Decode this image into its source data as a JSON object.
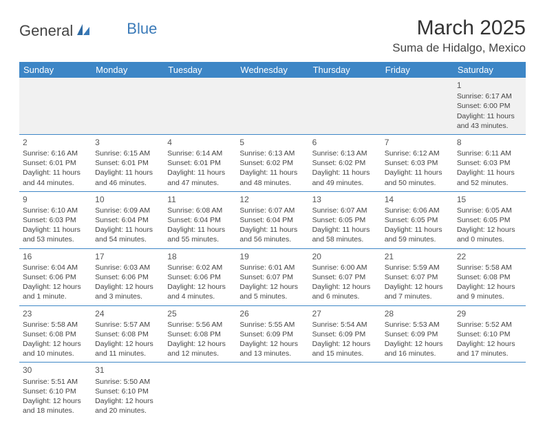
{
  "logo": {
    "part1": "General",
    "part2": "Blue"
  },
  "title": "March 2025",
  "location": "Suma de Hidalgo, Mexico",
  "colors": {
    "header_bg": "#3d86c6",
    "header_text": "#ffffff",
    "row_divider": "#3d86c6",
    "first_row_bg": "#f1f1f1",
    "body_text": "#3c3c3c",
    "logo_blue": "#3a7ab8"
  },
  "day_headers": [
    "Sunday",
    "Monday",
    "Tuesday",
    "Wednesday",
    "Thursday",
    "Friday",
    "Saturday"
  ],
  "weeks": [
    [
      null,
      null,
      null,
      null,
      null,
      null,
      {
        "n": "1",
        "sunrise": "Sunrise: 6:17 AM",
        "sunset": "Sunset: 6:00 PM",
        "daylight": "Daylight: 11 hours and 43 minutes."
      }
    ],
    [
      {
        "n": "2",
        "sunrise": "Sunrise: 6:16 AM",
        "sunset": "Sunset: 6:01 PM",
        "daylight": "Daylight: 11 hours and 44 minutes."
      },
      {
        "n": "3",
        "sunrise": "Sunrise: 6:15 AM",
        "sunset": "Sunset: 6:01 PM",
        "daylight": "Daylight: 11 hours and 46 minutes."
      },
      {
        "n": "4",
        "sunrise": "Sunrise: 6:14 AM",
        "sunset": "Sunset: 6:01 PM",
        "daylight": "Daylight: 11 hours and 47 minutes."
      },
      {
        "n": "5",
        "sunrise": "Sunrise: 6:13 AM",
        "sunset": "Sunset: 6:02 PM",
        "daylight": "Daylight: 11 hours and 48 minutes."
      },
      {
        "n": "6",
        "sunrise": "Sunrise: 6:13 AM",
        "sunset": "Sunset: 6:02 PM",
        "daylight": "Daylight: 11 hours and 49 minutes."
      },
      {
        "n": "7",
        "sunrise": "Sunrise: 6:12 AM",
        "sunset": "Sunset: 6:03 PM",
        "daylight": "Daylight: 11 hours and 50 minutes."
      },
      {
        "n": "8",
        "sunrise": "Sunrise: 6:11 AM",
        "sunset": "Sunset: 6:03 PM",
        "daylight": "Daylight: 11 hours and 52 minutes."
      }
    ],
    [
      {
        "n": "9",
        "sunrise": "Sunrise: 6:10 AM",
        "sunset": "Sunset: 6:03 PM",
        "daylight": "Daylight: 11 hours and 53 minutes."
      },
      {
        "n": "10",
        "sunrise": "Sunrise: 6:09 AM",
        "sunset": "Sunset: 6:04 PM",
        "daylight": "Daylight: 11 hours and 54 minutes."
      },
      {
        "n": "11",
        "sunrise": "Sunrise: 6:08 AM",
        "sunset": "Sunset: 6:04 PM",
        "daylight": "Daylight: 11 hours and 55 minutes."
      },
      {
        "n": "12",
        "sunrise": "Sunrise: 6:07 AM",
        "sunset": "Sunset: 6:04 PM",
        "daylight": "Daylight: 11 hours and 56 minutes."
      },
      {
        "n": "13",
        "sunrise": "Sunrise: 6:07 AM",
        "sunset": "Sunset: 6:05 PM",
        "daylight": "Daylight: 11 hours and 58 minutes."
      },
      {
        "n": "14",
        "sunrise": "Sunrise: 6:06 AM",
        "sunset": "Sunset: 6:05 PM",
        "daylight": "Daylight: 11 hours and 59 minutes."
      },
      {
        "n": "15",
        "sunrise": "Sunrise: 6:05 AM",
        "sunset": "Sunset: 6:05 PM",
        "daylight": "Daylight: 12 hours and 0 minutes."
      }
    ],
    [
      {
        "n": "16",
        "sunrise": "Sunrise: 6:04 AM",
        "sunset": "Sunset: 6:06 PM",
        "daylight": "Daylight: 12 hours and 1 minute."
      },
      {
        "n": "17",
        "sunrise": "Sunrise: 6:03 AM",
        "sunset": "Sunset: 6:06 PM",
        "daylight": "Daylight: 12 hours and 3 minutes."
      },
      {
        "n": "18",
        "sunrise": "Sunrise: 6:02 AM",
        "sunset": "Sunset: 6:06 PM",
        "daylight": "Daylight: 12 hours and 4 minutes."
      },
      {
        "n": "19",
        "sunrise": "Sunrise: 6:01 AM",
        "sunset": "Sunset: 6:07 PM",
        "daylight": "Daylight: 12 hours and 5 minutes."
      },
      {
        "n": "20",
        "sunrise": "Sunrise: 6:00 AM",
        "sunset": "Sunset: 6:07 PM",
        "daylight": "Daylight: 12 hours and 6 minutes."
      },
      {
        "n": "21",
        "sunrise": "Sunrise: 5:59 AM",
        "sunset": "Sunset: 6:07 PM",
        "daylight": "Daylight: 12 hours and 7 minutes."
      },
      {
        "n": "22",
        "sunrise": "Sunrise: 5:58 AM",
        "sunset": "Sunset: 6:08 PM",
        "daylight": "Daylight: 12 hours and 9 minutes."
      }
    ],
    [
      {
        "n": "23",
        "sunrise": "Sunrise: 5:58 AM",
        "sunset": "Sunset: 6:08 PM",
        "daylight": "Daylight: 12 hours and 10 minutes."
      },
      {
        "n": "24",
        "sunrise": "Sunrise: 5:57 AM",
        "sunset": "Sunset: 6:08 PM",
        "daylight": "Daylight: 12 hours and 11 minutes."
      },
      {
        "n": "25",
        "sunrise": "Sunrise: 5:56 AM",
        "sunset": "Sunset: 6:08 PM",
        "daylight": "Daylight: 12 hours and 12 minutes."
      },
      {
        "n": "26",
        "sunrise": "Sunrise: 5:55 AM",
        "sunset": "Sunset: 6:09 PM",
        "daylight": "Daylight: 12 hours and 13 minutes."
      },
      {
        "n": "27",
        "sunrise": "Sunrise: 5:54 AM",
        "sunset": "Sunset: 6:09 PM",
        "daylight": "Daylight: 12 hours and 15 minutes."
      },
      {
        "n": "28",
        "sunrise": "Sunrise: 5:53 AM",
        "sunset": "Sunset: 6:09 PM",
        "daylight": "Daylight: 12 hours and 16 minutes."
      },
      {
        "n": "29",
        "sunrise": "Sunrise: 5:52 AM",
        "sunset": "Sunset: 6:10 PM",
        "daylight": "Daylight: 12 hours and 17 minutes."
      }
    ],
    [
      {
        "n": "30",
        "sunrise": "Sunrise: 5:51 AM",
        "sunset": "Sunset: 6:10 PM",
        "daylight": "Daylight: 12 hours and 18 minutes."
      },
      {
        "n": "31",
        "sunrise": "Sunrise: 5:50 AM",
        "sunset": "Sunset: 6:10 PM",
        "daylight": "Daylight: 12 hours and 20 minutes."
      },
      null,
      null,
      null,
      null,
      null
    ]
  ]
}
